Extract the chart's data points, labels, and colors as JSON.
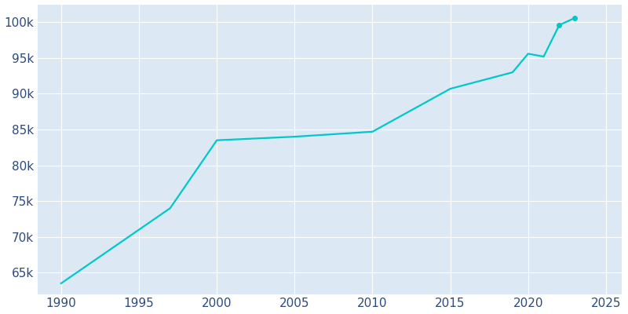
{
  "years": [
    1990,
    1997,
    2000,
    2005,
    2010,
    2015,
    2019,
    2020,
    2021,
    2022,
    2023
  ],
  "population": [
    63500,
    74000,
    83500,
    84000,
    84700,
    90700,
    93000,
    95600,
    95200,
    99600,
    100600
  ],
  "line_color": "#00C8C8",
  "marker_color": "#00C8C8",
  "fig_bg_color": "#ffffff",
  "plot_bg_color": "#dce9f5",
  "grid_color": "#ffffff",
  "tick_label_color": "#2e4a7a",
  "xlim": [
    1988.5,
    2026
  ],
  "ylim": [
    62000,
    102500
  ],
  "xticks": [
    1990,
    1995,
    2000,
    2005,
    2010,
    2015,
    2020,
    2025
  ],
  "yticks": [
    65000,
    70000,
    75000,
    80000,
    85000,
    90000,
    95000,
    100000
  ],
  "marked_years": [
    2022,
    2023
  ]
}
